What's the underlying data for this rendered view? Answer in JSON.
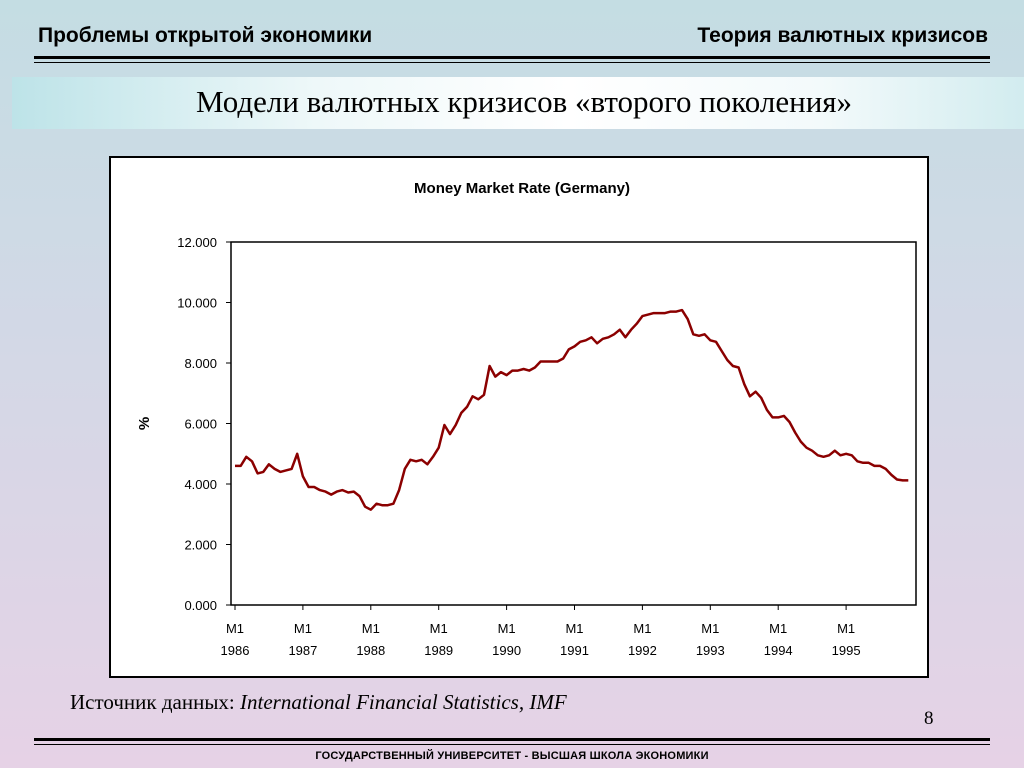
{
  "header": {
    "left_title": "Проблемы открытой экономики",
    "right_title": "Теория валютных кризисов"
  },
  "subtitle": "Модели валютных кризисов «второго поколения»",
  "source": {
    "label": "Источник данных:",
    "text": "International Financial Statistics, IMF"
  },
  "page_number": "8",
  "footer": "ГОСУДАРСТВЕННЫЙ УНИВЕРСИТЕТ - ВЫСШАЯ ШКОЛА ЭКОНОМИКИ",
  "chart_data": {
    "type": "line",
    "title": "Money Market Rate (Germany)",
    "ylabel": "%",
    "xlabel": "",
    "ylim": [
      0,
      12
    ],
    "y_ticks": [
      0,
      2,
      4,
      6,
      8,
      10,
      12
    ],
    "y_tick_labels": [
      "0.000",
      "2.000",
      "4.000",
      "6.000",
      "8.000",
      "10.000",
      "12.000"
    ],
    "x_tick_labels": [
      {
        "month": "M1",
        "year": "1986"
      },
      {
        "month": "M1",
        "year": "1987"
      },
      {
        "month": "M1",
        "year": "1988"
      },
      {
        "month": "M1",
        "year": "1989"
      },
      {
        "month": "M1",
        "year": "1990"
      },
      {
        "month": "M1",
        "year": "1991"
      },
      {
        "month": "M1",
        "year": "1992"
      },
      {
        "month": "M1",
        "year": "1993"
      },
      {
        "month": "M1",
        "year": "1994"
      },
      {
        "month": "M1",
        "year": "1995"
      }
    ],
    "grid": false,
    "line_color": "#8b0000",
    "series": [
      {
        "values": [
          4.6,
          4.6,
          4.9,
          4.75,
          4.35,
          4.4,
          4.65,
          4.5,
          4.4,
          4.45,
          4.5,
          5.0,
          4.25,
          3.9,
          3.9,
          3.8,
          3.75,
          3.65,
          3.75,
          3.8,
          3.72,
          3.75,
          3.6,
          3.25,
          3.15,
          3.35,
          3.3,
          3.3,
          3.35,
          3.8,
          4.5,
          4.8,
          4.75,
          4.8,
          4.65,
          4.9,
          5.2,
          5.95,
          5.65,
          5.95,
          6.35,
          6.55,
          6.9,
          6.8,
          6.95,
          7.9,
          7.55,
          7.7,
          7.6,
          7.75,
          7.75,
          7.8,
          7.75,
          7.85,
          8.05,
          8.05,
          8.05,
          8.05,
          8.15,
          8.45,
          8.55,
          8.7,
          8.75,
          8.85,
          8.65,
          8.8,
          8.85,
          8.95,
          9.1,
          8.85,
          9.1,
          9.3,
          9.55,
          9.6,
          9.65,
          9.65,
          9.65,
          9.7,
          9.7,
          9.75,
          9.45,
          8.95,
          8.9,
          8.95,
          8.75,
          8.7,
          8.4,
          8.1,
          7.9,
          7.85,
          7.3,
          6.9,
          7.05,
          6.85,
          6.45,
          6.2,
          6.2,
          6.25,
          6.05,
          5.7,
          5.4,
          5.2,
          5.1,
          4.95,
          4.9,
          4.95,
          5.1,
          4.95,
          5.0,
          4.95,
          4.75,
          4.7,
          4.7,
          4.6,
          4.6,
          4.5,
          4.3,
          4.15,
          4.12,
          4.12
        ]
      }
    ]
  }
}
